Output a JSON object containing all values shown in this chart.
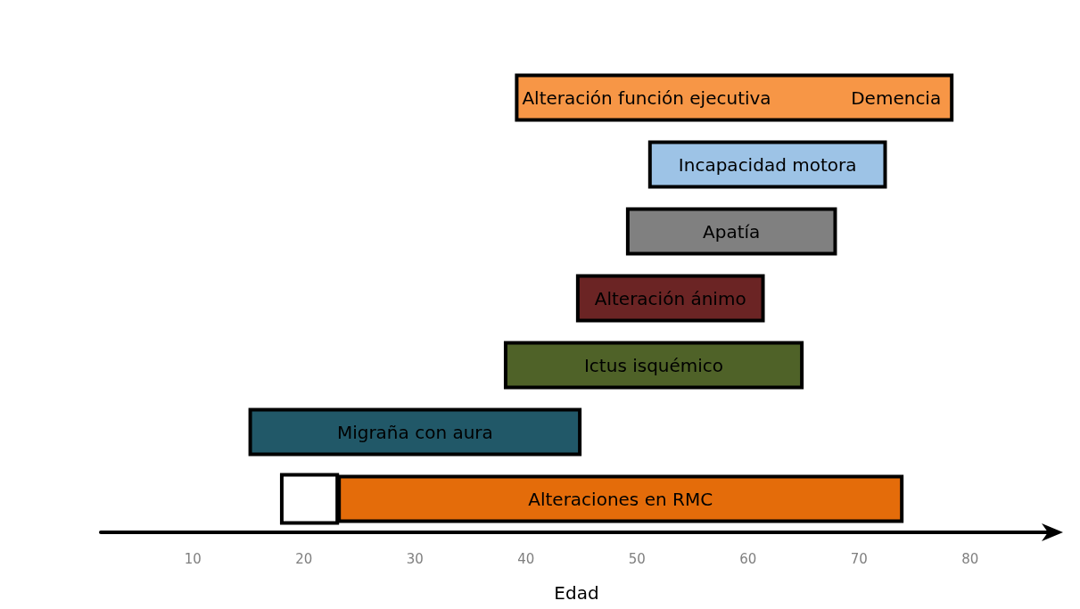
{
  "chart_data": {
    "type": "bar",
    "orientation": "horizontal",
    "xlabel": "Edad",
    "categories": [
      "Alteración función ejecutiva",
      "Incapacidad motora",
      "Apatía",
      "Alteración ánimo",
      "Ictus isquémico",
      "Migraña con aura",
      "Alteraciones en RMC"
    ],
    "series": [
      {
        "base": [
          39,
          51,
          49,
          44.5,
          38,
          15,
          23
        ],
        "values": [
          39.5,
          21.5,
          19,
          17,
          27,
          30,
          51
        ],
        "colors": [
          "#f79646",
          "#9dc3e6",
          "#808080",
          "#6b2424",
          "#4f6228",
          "#215868",
          "#e46c0a"
        ]
      }
    ],
    "bands": [
      {
        "axis": "x",
        "from": 18,
        "to": 23,
        "color": "#ffffff"
      }
    ],
    "annotations": [
      "Demencia"
    ],
    "xlim": [
      1.7,
      87.4
    ],
    "xticks": [
      10,
      20,
      30,
      40,
      50,
      60,
      70,
      80
    ],
    "tick_labels": "x",
    "grid": false
  }
}
